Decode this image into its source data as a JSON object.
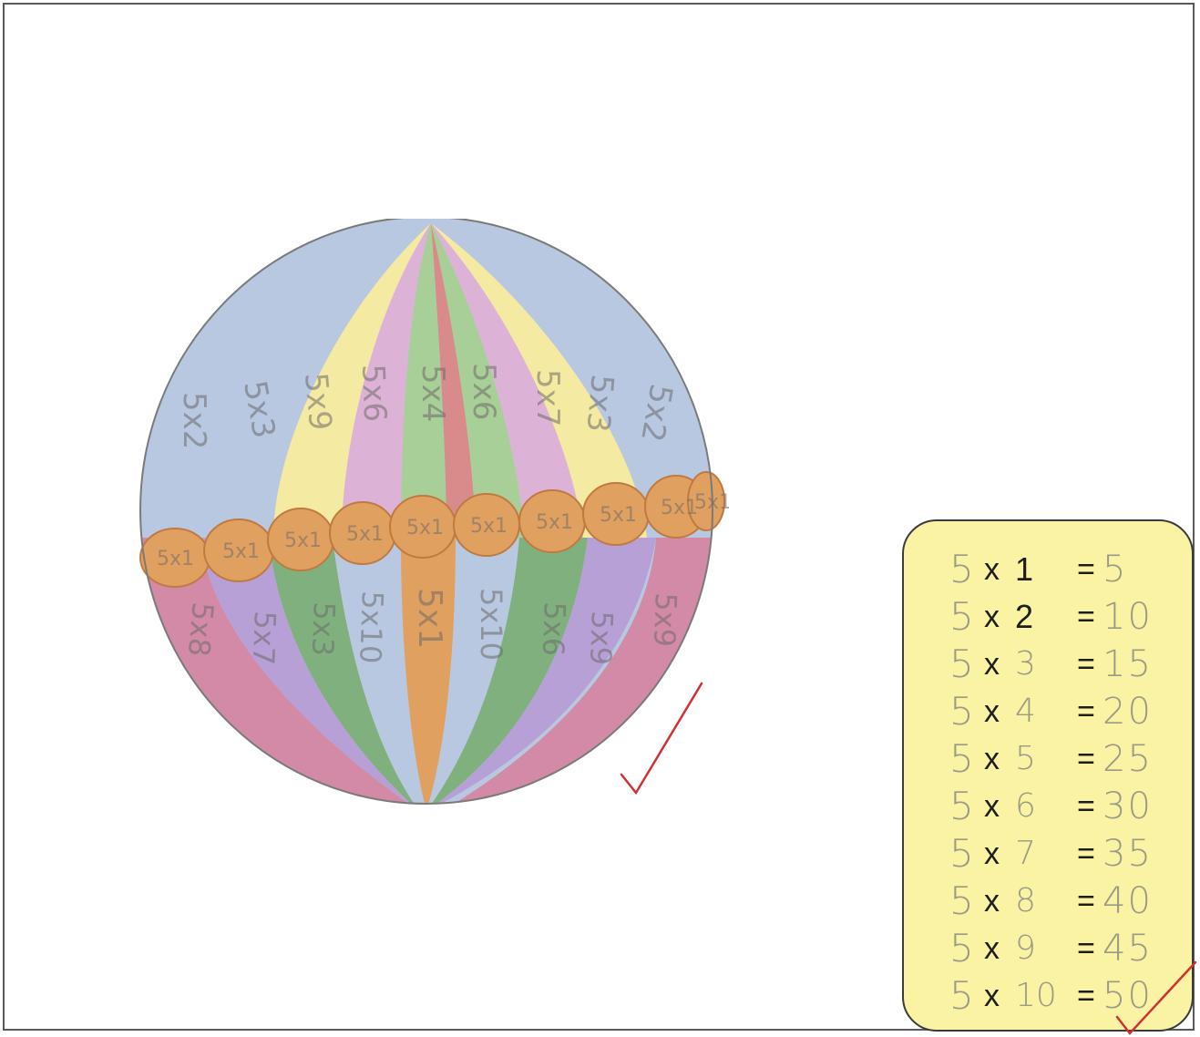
{
  "ball": {
    "upper_labels": [
      "5x2",
      "5x3",
      "5x9",
      "5x6",
      "5x4",
      "5x6",
      "5x7",
      "5x3",
      "5x2"
    ],
    "band_labels": [
      "5x1",
      "5x1",
      "5x1",
      "5x1",
      "5x1",
      "5x1",
      "5x1",
      "5x1",
      "5x1",
      "5x1"
    ],
    "lower_labels": [
      "5x8",
      "5x7",
      "5x3",
      "5x10",
      "5x1",
      "5x10",
      "5x6",
      "5x9",
      "5x9"
    ],
    "colors": {
      "blue": "#b7c8e0",
      "yellow": "#f5eaa2",
      "pink": "#dcb3d6",
      "green": "#a9cf98",
      "red": "#d98a8a",
      "orange": "#e0a060",
      "purple": "#b7a0d6",
      "magenta": "#d28aa6",
      "darkgreen": "#7fb07e"
    }
  },
  "times_table": {
    "rows": [
      {
        "a": "5",
        "x": "x",
        "b": "1",
        "b_handwritten": false,
        "eq": "=",
        "ans": "5"
      },
      {
        "a": "5",
        "x": "x",
        "b": "2",
        "b_handwritten": false,
        "eq": "=",
        "ans": "10"
      },
      {
        "a": "5",
        "x": "x",
        "b": "3",
        "b_handwritten": true,
        "eq": "=",
        "ans": "15"
      },
      {
        "a": "5",
        "x": "x",
        "b": "4",
        "b_handwritten": true,
        "eq": "=",
        "ans": "20"
      },
      {
        "a": "5",
        "x": "x",
        "b": "5",
        "b_handwritten": true,
        "eq": "=",
        "ans": "25"
      },
      {
        "a": "5",
        "x": "x",
        "b": "6",
        "b_handwritten": true,
        "eq": "=",
        "ans": "30"
      },
      {
        "a": "5",
        "x": "x",
        "b": "7",
        "b_handwritten": true,
        "eq": "=",
        "ans": "35"
      },
      {
        "a": "5",
        "x": "x",
        "b": "8",
        "b_handwritten": true,
        "eq": "=",
        "ans": "40"
      },
      {
        "a": "5",
        "x": "x",
        "b": "9",
        "b_handwritten": true,
        "eq": "=",
        "ans": "45"
      },
      {
        "a": "5",
        "x": "x",
        "b": "10",
        "b_handwritten": true,
        "eq": "=",
        "ans": "50"
      }
    ]
  },
  "marks": {
    "check_color": "#d23030",
    "box_fill": "#fbf3a4"
  }
}
